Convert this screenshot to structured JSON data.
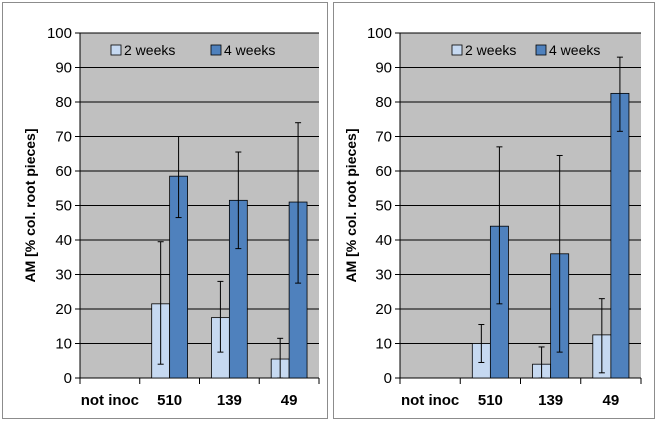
{
  "chart_data": [
    {
      "type": "bar",
      "title": "",
      "xlabel": "",
      "ylabel": "AM [% col. root pieces]",
      "ylim": [
        0,
        100
      ],
      "yticks": [
        "0",
        "10",
        "20",
        "30",
        "40",
        "50",
        "60",
        "70",
        "80",
        "90",
        "100"
      ],
      "categories": [
        "not inoc",
        "510",
        "139",
        "49"
      ],
      "series": [
        {
          "name": "2 weeks",
          "color": "#c6d9f1",
          "values": [
            0,
            21.5,
            17.5,
            5.5
          ],
          "err_low": [
            0,
            4,
            7.5,
            0
          ],
          "err_high": [
            0,
            39.5,
            28,
            11.5
          ]
        },
        {
          "name": "4 weeks",
          "color": "#4f81bd",
          "values": [
            0,
            58.5,
            51.5,
            51
          ],
          "err_low": [
            0,
            46.5,
            37.5,
            27.5
          ],
          "err_high": [
            0,
            70,
            65.5,
            74
          ]
        }
      ],
      "grid": true,
      "plot_background": "#c0c0c0",
      "legend": "top-center"
    },
    {
      "type": "bar",
      "title": "",
      "xlabel": "",
      "ylabel": "AM [% col. root pieces]",
      "ylim": [
        0,
        100
      ],
      "yticks": [
        "0",
        "10",
        "20",
        "30",
        "40",
        "50",
        "60",
        "70",
        "80",
        "90",
        "100"
      ],
      "categories": [
        "not inoc",
        "510",
        "139",
        "49"
      ],
      "series": [
        {
          "name": "2 weeks",
          "color": "#c6d9f1",
          "values": [
            0,
            10,
            4,
            12.5
          ],
          "err_low": [
            0,
            4.5,
            0,
            1.5
          ],
          "err_high": [
            0,
            15.5,
            9,
            23
          ]
        },
        {
          "name": "4 weeks",
          "color": "#4f81bd",
          "values": [
            0,
            44,
            36,
            82.5
          ],
          "err_low": [
            0,
            21.5,
            7.5,
            71.5
          ],
          "err_high": [
            0,
            67,
            64.5,
            93
          ]
        }
      ],
      "grid": true,
      "plot_background": "#c0c0c0",
      "legend": "top-right"
    }
  ]
}
